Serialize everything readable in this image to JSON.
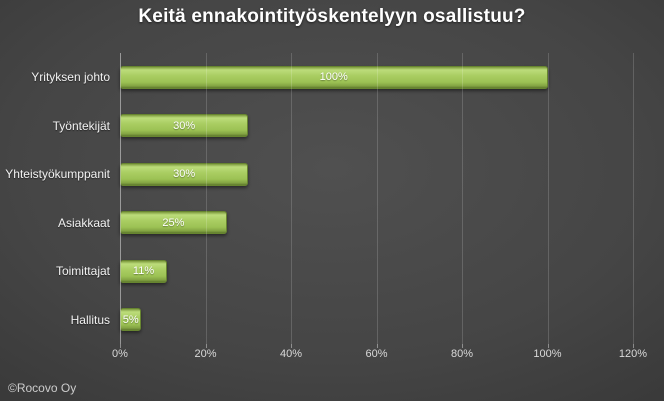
{
  "title": "Keitä ennakointityöskentelyyn osallistuu?",
  "footer": {
    "copyright": "©Rocovo Oy"
  },
  "colors": {
    "background_center": "#505050",
    "background_edge": "#242424",
    "bar_fill": "#a3c95c",
    "bar_highlight": "#bcdc7a",
    "bar_border": "#678530",
    "title_text": "#ffffff",
    "category_text": "#f2f2f2",
    "tick_text": "#d9d9d9",
    "gridline": "rgba(255,255,255,0.16)"
  },
  "chart_data": {
    "type": "bar",
    "orientation": "horizontal",
    "title": "Keitä ennakointityöskentelyyn osallistuu?",
    "categories": [
      "Yrityksen johto",
      "Työntekijät",
      "Yhteistyökumppanit",
      "Asiakkaat",
      "Toimittajat",
      "Hallitus"
    ],
    "values": [
      100,
      30,
      30,
      25,
      11,
      5
    ],
    "data_labels": [
      "100%",
      "30%",
      "30%",
      "25%",
      "11%",
      "5%"
    ],
    "x_ticks": [
      "0%",
      "20%",
      "40%",
      "60%",
      "80%",
      "100%",
      "120%"
    ],
    "xlim": [
      0,
      120
    ],
    "grid": "vertical",
    "legend": "none",
    "data_label_position": "inside-center"
  }
}
